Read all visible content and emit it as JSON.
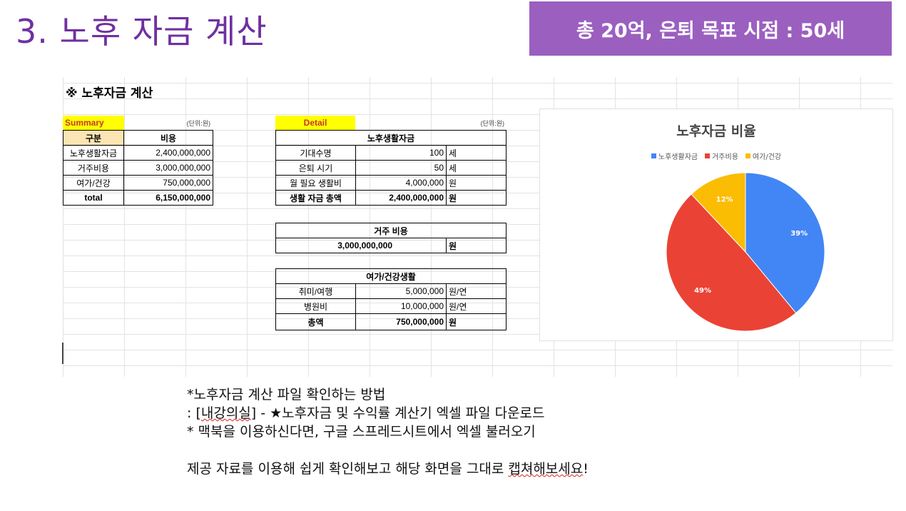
{
  "slide": {
    "title": "3. 노후 자금 계산",
    "banner": "총 20억, 은퇴 목표 시점  : 50세"
  },
  "sheet": {
    "title": "※ 노후자금 계산",
    "summary": {
      "label": "Summary",
      "unit": "(단위:원)",
      "headers": [
        "구분",
        "비용"
      ],
      "rows": [
        [
          "노후생활자금",
          "2,400,000,000"
        ],
        [
          "거주비용",
          "3,000,000,000"
        ],
        [
          "여가/건강",
          "750,000,000"
        ],
        [
          "total",
          "6,150,000,000"
        ]
      ]
    },
    "detail": {
      "label": "Detail",
      "unit": "(단위:원)",
      "living": {
        "header": "노후생활자금",
        "rows": [
          [
            "기대수명",
            "100",
            "세"
          ],
          [
            "은퇴 시기",
            "50",
            "세"
          ],
          [
            "월 필요 생활비",
            "4,000,000",
            "원"
          ],
          [
            "생활 자금 총액",
            "2,400,000,000",
            "원"
          ]
        ]
      },
      "housing": {
        "header": "거주 비용",
        "value": "3,000,000,000",
        "unit": "원"
      },
      "leisure": {
        "header": "여가/건강생활",
        "rows": [
          [
            "취미/여행",
            "5,000,000",
            "원/연"
          ],
          [
            "병원비",
            "10,000,000",
            "원/연"
          ],
          [
            "총액",
            "750,000,000",
            "원"
          ]
        ]
      }
    }
  },
  "chart_data": {
    "type": "pie",
    "title": "노후자금 비율",
    "legend_position": "top",
    "categories": [
      "노후생활자금",
      "거주비용",
      "여가/건강"
    ],
    "values": [
      39,
      49,
      12
    ],
    "labels": [
      "39%",
      "49%",
      "12%"
    ],
    "colors": [
      "#4285f4",
      "#ea4335",
      "#fbbc04"
    ]
  },
  "notes": {
    "line1": "*노후자금 계산 파일 확인하는 방법",
    "line2_prefix": ": [",
    "line2_link": "내강의실",
    "line2_suffix": "] - ★노후자금 및 수익률 계산기 엑셀 파일 다운로드",
    "line3": "* 맥북을 이용하신다면, 구글 스프레드시트에서 엑셀 불러오기",
    "line4_prefix": "제공 자료를 이용해 쉽게 확인해보고 해당 화면을 그대로 ",
    "line4_squig": "캡쳐해보세요",
    "line4_suffix": "!"
  }
}
